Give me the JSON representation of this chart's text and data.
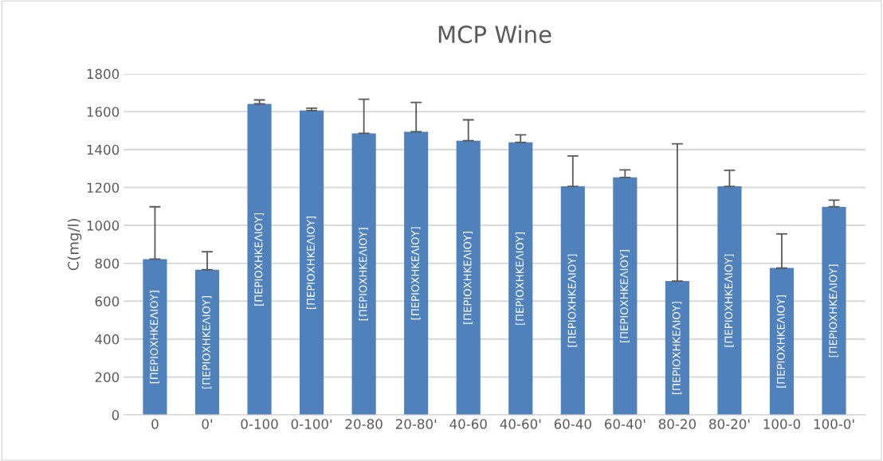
{
  "chart_data": {
    "type": "bar",
    "title": "MCP Wine",
    "ylabel": "C(mg/l)",
    "categories": [
      "0",
      "0'",
      "0-100",
      "0-100'",
      "20-80",
      "20-80'",
      "40-60",
      "40-60'",
      "60-40",
      "60-40'",
      "80-20",
      "80-20'",
      "100-0",
      "100-0'"
    ],
    "values": [
      822,
      766,
      1641,
      1606,
      1486,
      1494,
      1447,
      1438,
      1206,
      1253,
      706,
      1206,
      775,
      1098
    ],
    "errors": [
      [
        822,
        1098
      ],
      [
        766,
        861
      ],
      [
        1641,
        1662
      ],
      [
        1606,
        1618
      ],
      [
        1486,
        1666
      ],
      [
        1494,
        1649
      ],
      [
        1447,
        1557
      ],
      [
        1438,
        1478
      ],
      [
        1206,
        1366
      ],
      [
        1253,
        1293
      ],
      [
        706,
        1430
      ],
      [
        1206,
        1291
      ],
      [
        775,
        955
      ],
      [
        1098,
        1133
      ]
    ],
    "value_labels": [
      "[ΠΕΡΙΟΧΗΚΕΛΙΟΥ]",
      "[ΠΕΡΙΟΧΗΚΕΛΙΟΥ]",
      "[ΠΕΡΙΟΧΗΚΕΛΙΟΥ]",
      "[ΠΕΡΙΟΧΗΚΕΛΙΟΥ]",
      "[ΠΕΡΙΟΧΗΚΕΛΙΟΥ]",
      "[ΠΕΡΙΟΧΗΚΕΛΙΟΥ]",
      "[ΠΕΡΙΟΧΗΚΕΛΙΟΥ]",
      "[ΠΕΡΙΟΧΗΚΕΛΙΟΥ]",
      "[ΠΕΡΙΟΧΗΚΕΛΙΟΥ]",
      "[ΠΕΡΙΟΧΗΚΕΛΙΟΥ]",
      "[ΠΕΡΙΟΧΗΚΕΛΙΟΥ]",
      "[ΠΕΡΙΟΧΗΚΕΛΙΟΥ]",
      "[ΠΕΡΙΟΧΗΚΕΛΙΟΥ]",
      "[ΠΕΡΙΟΧΗΚΕΛΙΟΥ]"
    ],
    "color": "#4f81bd",
    "ylim": [
      0,
      1800
    ],
    "yticks": [
      0,
      200,
      400,
      600,
      800,
      1000,
      1200,
      1400,
      1600,
      1800
    ],
    "grid": "y",
    "legend": false
  }
}
